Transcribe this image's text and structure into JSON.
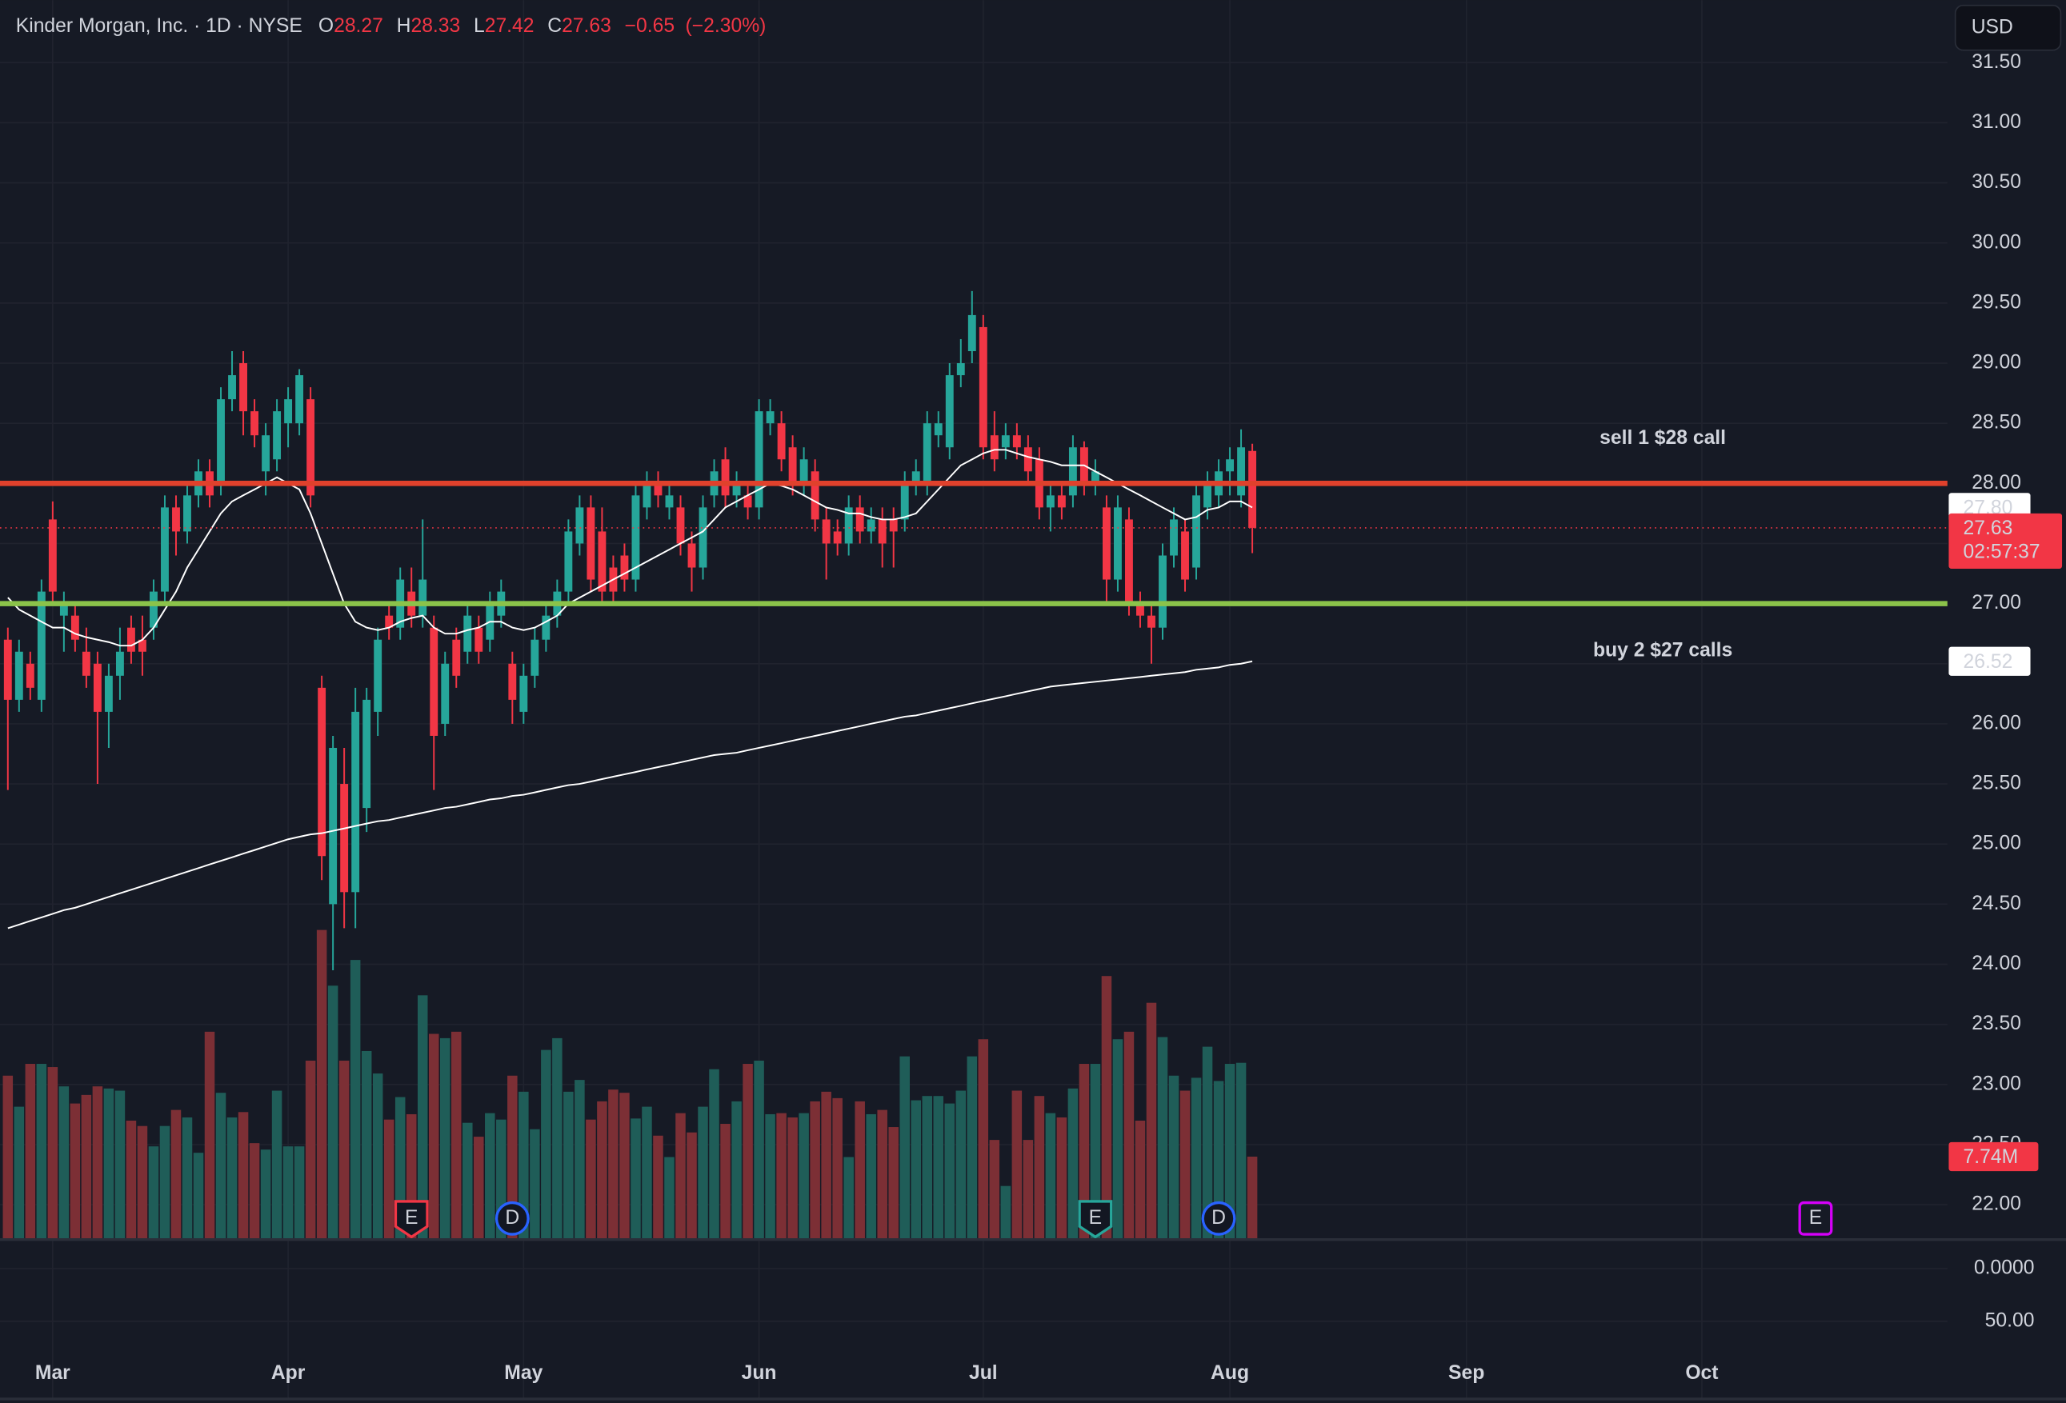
{
  "chart_data": {
    "type": "candlestick",
    "title": "Kinder Morgan, Inc. · 1D · NYSE",
    "ohlc_keys": [
      "O",
      "H",
      "L",
      "C"
    ],
    "change": {
      "value": -0.65,
      "label": "−0.65"
    },
    "change_pct": {
      "value": -2.3,
      "label": "(−2.30%)"
    },
    "currency": "USD",
    "colors": {
      "up": "#26a69a",
      "down": "#f23645",
      "up_volume": "#1f5d58",
      "down_volume": "#7c2f35",
      "ma20": "#ffffff",
      "ma200": "#ffffff"
    },
    "xlim": [
      -0.7,
      173
    ],
    "xticks": [
      {
        "value": 4,
        "label": "Mar"
      },
      {
        "value": 25,
        "label": "Apr"
      },
      {
        "value": 46,
        "label": "May"
      },
      {
        "value": 67,
        "label": "Jun"
      },
      {
        "value": 87,
        "label": "Jul"
      },
      {
        "value": 109,
        "label": "Aug"
      },
      {
        "value": 130.1,
        "label": "Sep"
      },
      {
        "value": 151.1,
        "label": "Oct"
      }
    ],
    "ylim": [
      21.71,
      32.02
    ],
    "yticks": [
      {
        "value": 22,
        "label": "22.00"
      },
      {
        "value": 22.5,
        "label": "22.50"
      },
      {
        "value": 23,
        "label": "23.00"
      },
      {
        "value": 23.5,
        "label": "23.50"
      },
      {
        "value": 24,
        "label": "24.00"
      },
      {
        "value": 24.5,
        "label": "24.50"
      },
      {
        "value": 25,
        "label": "25.00"
      },
      {
        "value": 25.5,
        "label": "25.50"
      },
      {
        "value": 26,
        "label": "26.00"
      },
      {
        "value": 26.5,
        "label": "26.50"
      },
      {
        "value": 27,
        "label": "27.00"
      },
      {
        "value": 27.5,
        "label": "27.50"
      },
      {
        "value": 28,
        "label": "28.00"
      },
      {
        "value": 28.5,
        "label": "28.50"
      },
      {
        "value": 29,
        "label": "29.00"
      },
      {
        "value": 29.5,
        "label": "29.50"
      },
      {
        "value": 30,
        "label": "30.00"
      },
      {
        "value": 30.5,
        "label": "30.50"
      },
      {
        "value": 31,
        "label": "31.00"
      },
      {
        "value": 31.5,
        "label": "31.50"
      }
    ],
    "grid": true,
    "vlim": [
      0,
      60
    ],
    "lower_pane_ticks": [
      {
        "value": 0,
        "label": "0.0000"
      },
      {
        "value": 50,
        "label": "50.00"
      }
    ],
    "open": [
      26.7,
      26.2,
      26.5,
      26.2,
      27.7,
      26.9,
      26.9,
      26.6,
      26.5,
      26.1,
      26.4,
      26.8,
      26.7,
      26.8,
      27.1,
      27.8,
      27.6,
      27.9,
      28.1,
      28.0,
      28.7,
      29.0,
      28.6,
      28.1,
      28.2,
      28.5,
      28.5,
      28.7,
      26.3,
      24.5,
      25.5,
      24.6,
      25.3,
      26.1,
      26.9,
      26.8,
      27.1,
      26.9,
      26.8,
      26.0,
      26.7,
      26.6,
      26.8,
      26.7,
      26.9,
      26.5,
      26.1,
      26.4,
      26.7,
      26.9,
      27.1,
      27.5,
      27.8,
      27.6,
      27.3,
      27.4,
      27.2,
      27.8,
      28.0,
      27.8,
      27.8,
      27.5,
      27.3,
      27.9,
      28.2,
      27.9,
      27.9,
      27.8,
      28.5,
      28.5,
      28.3,
      28.0,
      28.1,
      27.7,
      27.6,
      27.5,
      27.8,
      27.6,
      27.7,
      27.7,
      27.7,
      28.0,
      28.0,
      28.4,
      28.3,
      28.9,
      29.1,
      29.3,
      28.4,
      28.3,
      28.4,
      28.3,
      28.2,
      27.8,
      27.9,
      27.9,
      28.3,
      28.0,
      27.8,
      27.2,
      27.7,
      27.0,
      26.9,
      26.8,
      27.4,
      27.6,
      27.3,
      27.8,
      27.9,
      28.1,
      27.9,
      28.27
    ],
    "high": [
      26.8,
      26.7,
      26.6,
      27.2,
      27.85,
      27.1,
      27.0,
      26.8,
      26.6,
      26.5,
      26.8,
      26.9,
      26.9,
      27.2,
      27.9,
      27.9,
      28.0,
      28.2,
      28.2,
      28.8,
      29.1,
      29.1,
      28.7,
      28.5,
      28.7,
      28.8,
      28.95,
      28.8,
      26.4,
      25.9,
      25.8,
      26.3,
      26.3,
      26.8,
      27.0,
      27.3,
      27.3,
      27.7,
      26.9,
      26.6,
      26.8,
      27.0,
      26.9,
      27.1,
      27.2,
      26.6,
      26.5,
      26.8,
      27.0,
      27.2,
      27.7,
      27.9,
      27.9,
      27.8,
      27.4,
      27.5,
      28.0,
      28.1,
      28.1,
      28.0,
      27.9,
      27.6,
      27.9,
      28.2,
      28.3,
      28.1,
      28.0,
      28.7,
      28.7,
      28.6,
      28.4,
      28.3,
      28.2,
      27.8,
      27.7,
      27.9,
      27.9,
      27.8,
      27.8,
      27.8,
      28.1,
      28.2,
      28.6,
      28.6,
      29.0,
      29.2,
      29.6,
      29.4,
      28.6,
      28.5,
      28.5,
      28.4,
      28.3,
      28.0,
      28.0,
      28.4,
      28.35,
      28.2,
      27.9,
      27.9,
      27.8,
      27.1,
      27.0,
      27.5,
      27.8,
      27.7,
      28.0,
      28.1,
      28.2,
      28.3,
      28.45,
      28.33
    ],
    "low": [
      25.45,
      26.1,
      26.2,
      26.1,
      27.0,
      26.6,
      26.6,
      26.3,
      25.5,
      25.8,
      26.2,
      26.5,
      26.4,
      26.7,
      27.0,
      27.4,
      27.5,
      27.8,
      27.8,
      27.9,
      28.6,
      28.4,
      28.3,
      27.9,
      28.1,
      28.3,
      28.4,
      27.8,
      24.7,
      23.95,
      24.3,
      24.3,
      25.1,
      25.9,
      26.7,
      26.7,
      26.8,
      26.8,
      25.45,
      25.9,
      26.3,
      26.5,
      26.5,
      26.6,
      26.8,
      26.0,
      26.0,
      26.3,
      26.6,
      26.8,
      27.0,
      27.4,
      27.1,
      27.0,
      27.0,
      27.1,
      27.1,
      27.7,
      27.8,
      27.7,
      27.4,
      27.1,
      27.2,
      27.8,
      27.8,
      27.8,
      27.7,
      27.7,
      28.4,
      28.1,
      27.9,
      27.9,
      27.6,
      27.2,
      27.4,
      27.4,
      27.5,
      27.5,
      27.3,
      27.3,
      27.6,
      27.9,
      27.9,
      28.3,
      28.2,
      28.8,
      29.0,
      28.2,
      28.1,
      28.2,
      28.2,
      28.0,
      27.7,
      27.6,
      27.7,
      27.8,
      27.9,
      27.9,
      27.0,
      27.1,
      26.9,
      26.8,
      26.5,
      26.7,
      27.3,
      27.1,
      27.2,
      27.7,
      27.8,
      27.9,
      27.8,
      27.42
    ],
    "close": [
      26.2,
      26.6,
      26.3,
      27.1,
      27.1,
      27.0,
      26.7,
      26.4,
      26.1,
      26.4,
      26.6,
      26.6,
      26.6,
      27.1,
      27.8,
      27.6,
      27.9,
      28.1,
      27.9,
      28.7,
      28.9,
      28.6,
      28.4,
      28.4,
      28.6,
      28.7,
      28.9,
      27.9,
      24.9,
      25.8,
      24.6,
      26.1,
      26.2,
      26.7,
      26.8,
      27.2,
      26.9,
      27.2,
      25.9,
      26.5,
      26.4,
      26.9,
      26.6,
      27.0,
      27.1,
      26.2,
      26.4,
      26.7,
      26.9,
      27.1,
      27.6,
      27.8,
      27.2,
      27.1,
      27.1,
      27.2,
      27.9,
      28.0,
      27.9,
      27.9,
      27.5,
      27.3,
      27.8,
      28.1,
      27.9,
      28.0,
      27.8,
      28.6,
      28.6,
      28.2,
      28.0,
      28.2,
      27.7,
      27.5,
      27.5,
      27.8,
      27.6,
      27.7,
      27.5,
      27.6,
      28.0,
      28.1,
      28.5,
      28.5,
      28.9,
      29.0,
      29.4,
      28.3,
      28.2,
      28.4,
      28.3,
      28.1,
      27.8,
      27.9,
      27.8,
      28.3,
      28.0,
      28.1,
      27.2,
      27.8,
      27.0,
      26.9,
      26.8,
      27.4,
      27.7,
      27.2,
      27.9,
      28.0,
      28.1,
      28.2,
      28.3,
      27.63
    ],
    "volume": [
      15.3,
      12.4,
      16.4,
      16.4,
      16.1,
      14.3,
      12.7,
      13.5,
      14.3,
      14.1,
      13.9,
      11.1,
      10.6,
      8.7,
      10.6,
      12.1,
      11.4,
      8.1,
      19.4,
      13.7,
      11.4,
      11.9,
      9.0,
      8.4,
      13.9,
      8.7,
      8.7,
      16.7,
      28.9,
      23.7,
      16.7,
      26.1,
      17.6,
      15.5,
      11.2,
      13.3,
      11.7,
      22.8,
      19.2,
      18.8,
      19.4,
      10.9,
      9.6,
      11.8,
      11.2,
      15.3,
      13.8,
      10.3,
      17.7,
      18.8,
      13.8,
      14.9,
      11.2,
      12.9,
      14.0,
      13.7,
      11.3,
      12.4,
      9.7,
      7.7,
      11.8,
      10.0,
      12.4,
      15.9,
      10.8,
      12.9,
      16.4,
      16.7,
      11.7,
      11.8,
      11.4,
      11.8,
      12.9,
      13.8,
      13.2,
      7.7,
      12.9,
      11.7,
      12.1,
      10.5,
      17.1,
      13.0,
      13.4,
      13.4,
      12.7,
      13.9,
      17.1,
      18.7,
      9.3,
      5.0,
      13.9,
      9.3,
      13.4,
      11.8,
      11.4,
      14.1,
      16.4,
      16.4,
      24.6,
      18.7,
      19.4,
      11.1,
      22.1,
      18.9,
      15.3,
      13.9,
      15.1,
      18.0,
      14.8,
      16.4,
      16.5,
      7.74
    ],
    "ma20": [
      27.05,
      26.95,
      26.9,
      26.85,
      26.8,
      26.8,
      26.75,
      26.72,
      26.7,
      26.68,
      26.65,
      26.65,
      26.7,
      26.8,
      26.95,
      27.1,
      27.3,
      27.45,
      27.6,
      27.75,
      27.85,
      27.9,
      27.95,
      28.0,
      28.05,
      28.0,
      27.95,
      27.75,
      27.5,
      27.25,
      27.0,
      26.85,
      26.8,
      26.78,
      26.8,
      26.85,
      26.88,
      26.9,
      26.8,
      26.75,
      26.75,
      26.78,
      26.8,
      26.85,
      26.85,
      26.8,
      26.78,
      26.8,
      26.85,
      26.9,
      27.0,
      27.05,
      27.1,
      27.15,
      27.2,
      27.25,
      27.3,
      27.35,
      27.4,
      27.45,
      27.5,
      27.55,
      27.6,
      27.7,
      27.8,
      27.85,
      27.9,
      27.95,
      28.0,
      27.98,
      27.95,
      27.9,
      27.85,
      27.8,
      27.78,
      27.75,
      27.75,
      27.72,
      27.7,
      27.7,
      27.72,
      27.75,
      27.85,
      27.95,
      28.05,
      28.15,
      28.2,
      28.25,
      28.28,
      28.28,
      28.25,
      28.22,
      28.2,
      28.18,
      28.15,
      28.15,
      28.15,
      28.1,
      28.05,
      28.0,
      27.95,
      27.9,
      27.85,
      27.8,
      27.75,
      27.7,
      27.72,
      27.78,
      27.8,
      27.85,
      27.85,
      27.8
    ],
    "ma200": [
      24.3,
      24.33,
      24.36,
      24.39,
      24.42,
      24.45,
      24.47,
      24.5,
      24.53,
      24.56,
      24.59,
      24.62,
      24.65,
      24.68,
      24.71,
      24.74,
      24.77,
      24.8,
      24.83,
      24.86,
      24.89,
      24.92,
      24.95,
      24.98,
      25.01,
      25.04,
      25.06,
      25.08,
      25.09,
      25.11,
      25.13,
      25.15,
      25.17,
      25.19,
      25.2,
      25.22,
      25.24,
      25.26,
      25.28,
      25.3,
      25.31,
      25.33,
      25.35,
      25.37,
      25.38,
      25.4,
      25.41,
      25.43,
      25.45,
      25.47,
      25.49,
      25.5,
      25.52,
      25.54,
      25.56,
      25.58,
      25.6,
      25.62,
      25.64,
      25.66,
      25.68,
      25.7,
      25.72,
      25.74,
      25.75,
      25.76,
      25.78,
      25.8,
      25.82,
      25.84,
      25.86,
      25.88,
      25.9,
      25.92,
      25.94,
      25.96,
      25.98,
      26.0,
      26.02,
      26.04,
      26.06,
      26.07,
      26.09,
      26.11,
      26.13,
      26.15,
      26.17,
      26.19,
      26.21,
      26.23,
      26.25,
      26.27,
      26.29,
      26.31,
      26.32,
      26.33,
      26.34,
      26.35,
      26.36,
      26.37,
      26.38,
      26.39,
      26.4,
      26.41,
      26.42,
      26.43,
      26.45,
      26.46,
      26.47,
      26.49,
      26.5,
      26.52
    ],
    "levels": [
      {
        "value": 28,
        "color": "#e0412c",
        "label": "sell 1 $28 call"
      },
      {
        "value": 27,
        "color": "#8bc34a",
        "label": "buy 2 $27 calls"
      }
    ],
    "price_tags": [
      {
        "value": 27.8,
        "label": "27.80",
        "color": "#ffffff"
      },
      {
        "value": 26.52,
        "label": "26.52",
        "color": "#ffffff"
      }
    ],
    "close_tag": {
      "value": 27.63,
      "label": "27.63",
      "countdown": "02:57:37",
      "color": "#f23645"
    },
    "volume_tag": {
      "value": 7.74,
      "label": "7.74M",
      "color": "#f23645"
    },
    "events": [
      {
        "x": 36,
        "label": "E",
        "shape": "shield",
        "color": "#f23645"
      },
      {
        "x": 45,
        "label": "D",
        "shape": "circle",
        "color": "#2962ff"
      },
      {
        "x": 97,
        "label": "E",
        "shape": "shield",
        "color": "#26a69a"
      },
      {
        "x": 108,
        "label": "D",
        "shape": "circle",
        "color": "#2962ff"
      },
      {
        "x": 161,
        "label": "E",
        "shape": "future",
        "color": "#d500f9"
      }
    ]
  }
}
